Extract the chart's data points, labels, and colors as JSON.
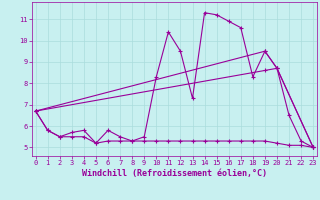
{
  "xlabel": "Windchill (Refroidissement éolien,°C)",
  "bg_color": "#c8f0f0",
  "line_color": "#990099",
  "grid_color": "#aadddd",
  "x_ticks": [
    0,
    1,
    2,
    3,
    4,
    5,
    6,
    7,
    8,
    9,
    10,
    11,
    12,
    13,
    14,
    15,
    16,
    17,
    18,
    19,
    20,
    21,
    22,
    23
  ],
  "y_ticks": [
    5,
    6,
    7,
    8,
    9,
    10,
    11
  ],
  "xlim": [
    -0.3,
    23.3
  ],
  "ylim": [
    4.6,
    11.8
  ],
  "line1_x": [
    0,
    1,
    2,
    3,
    4,
    5,
    6,
    7,
    8,
    9,
    10,
    11,
    12,
    13,
    14,
    15,
    16,
    17,
    18,
    19,
    20,
    21,
    22,
    23
  ],
  "line1_y": [
    6.7,
    5.8,
    5.5,
    5.7,
    5.8,
    5.2,
    5.8,
    5.5,
    5.3,
    5.5,
    8.3,
    10.4,
    9.5,
    7.3,
    11.3,
    11.2,
    10.9,
    10.6,
    8.3,
    9.5,
    8.7,
    6.5,
    5.3,
    5.0
  ],
  "line2_x": [
    0,
    19,
    20,
    23
  ],
  "line2_y": [
    6.7,
    8.6,
    8.7,
    5.0
  ],
  "line3_x": [
    0,
    19,
    20,
    23
  ],
  "line3_y": [
    6.7,
    9.5,
    8.7,
    5.0
  ],
  "line4_x": [
    0,
    1,
    2,
    3,
    4,
    5,
    6,
    7,
    8,
    9,
    10,
    11,
    12,
    13,
    14,
    15,
    16,
    17,
    18,
    19,
    20,
    21,
    22,
    23
  ],
  "line4_y": [
    6.7,
    5.8,
    5.5,
    5.5,
    5.5,
    5.2,
    5.3,
    5.3,
    5.3,
    5.3,
    5.3,
    5.3,
    5.3,
    5.3,
    5.3,
    5.3,
    5.3,
    5.3,
    5.3,
    5.3,
    5.2,
    5.1,
    5.1,
    5.0
  ],
  "marker": "+",
  "markersize": 3,
  "linewidth": 0.8,
  "tick_fontsize": 5.0,
  "xlabel_fontsize": 6.0
}
